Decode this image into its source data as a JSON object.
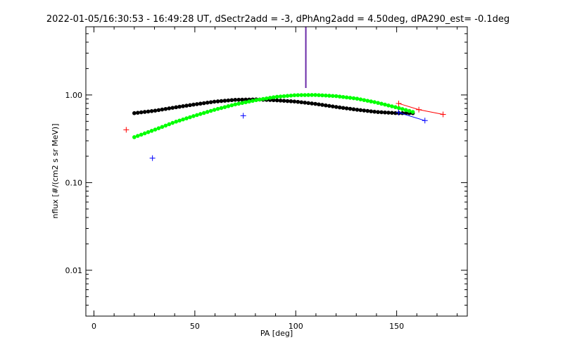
{
  "chart_data": {
    "type": "scatter",
    "title": "2022-01-05/16:30:53 - 16:49:28 UT, dSectr2add = -3, dPhAng2add = 4.50deg, dPA290_est=  -0.1deg",
    "xlabel": "PA [deg]",
    "ylabel": "nflux [#/(cm2 s sr MeV)]",
    "xlim": [
      -4,
      185
    ],
    "ylim": [
      0.003,
      6.0
    ],
    "yscale": "log",
    "x_ticks": [
      0,
      50,
      100,
      150
    ],
    "x_tick_labels": [
      "0",
      "50",
      "100",
      "150"
    ],
    "y_ticks": [
      0.01,
      0.1,
      1.0
    ],
    "y_tick_labels": [
      "0.01",
      "0.10",
      "1.00"
    ],
    "grid": false,
    "colors": {
      "red": "#ff0000",
      "blue": "#0000ff",
      "black": "#000000",
      "green": "#00ff00",
      "vline": "#6a2aa8"
    },
    "series": [
      {
        "style": "plus",
        "color": "#ff0000",
        "connect_from": 150,
        "points": [
          [
            16,
            0.4
          ],
          [
            151,
            0.8
          ],
          [
            161,
            0.68
          ],
          [
            173,
            0.6
          ]
        ]
      },
      {
        "style": "plus",
        "color": "#0000ff",
        "connect_from": 150,
        "points": [
          [
            29,
            0.19
          ],
          [
            74,
            0.58
          ],
          [
            151,
            0.63
          ],
          [
            164,
            0.51
          ]
        ]
      },
      {
        "style": "dots",
        "color": "#000000",
        "points": [
          [
            20,
            0.62
          ],
          [
            30,
            0.66
          ],
          [
            40,
            0.72
          ],
          [
            50,
            0.78
          ],
          [
            60,
            0.84
          ],
          [
            70,
            0.88
          ],
          [
            80,
            0.89
          ],
          [
            90,
            0.87
          ],
          [
            100,
            0.84
          ],
          [
            110,
            0.79
          ],
          [
            120,
            0.73
          ],
          [
            130,
            0.68
          ],
          [
            140,
            0.64
          ],
          [
            150,
            0.62
          ],
          [
            158,
            0.62
          ]
        ]
      },
      {
        "style": "dots",
        "color": "#00ff00",
        "points": [
          [
            20,
            0.33
          ],
          [
            30,
            0.4
          ],
          [
            40,
            0.49
          ],
          [
            50,
            0.58
          ],
          [
            60,
            0.68
          ],
          [
            70,
            0.78
          ],
          [
            80,
            0.87
          ],
          [
            90,
            0.95
          ],
          [
            100,
            0.995
          ],
          [
            110,
            1.0
          ],
          [
            120,
            0.97
          ],
          [
            130,
            0.91
          ],
          [
            140,
            0.82
          ],
          [
            150,
            0.72
          ],
          [
            158,
            0.64
          ]
        ]
      }
    ],
    "vertical_line": {
      "x": 105,
      "y_from": 1.2,
      "color": "#6a2aa8"
    }
  }
}
